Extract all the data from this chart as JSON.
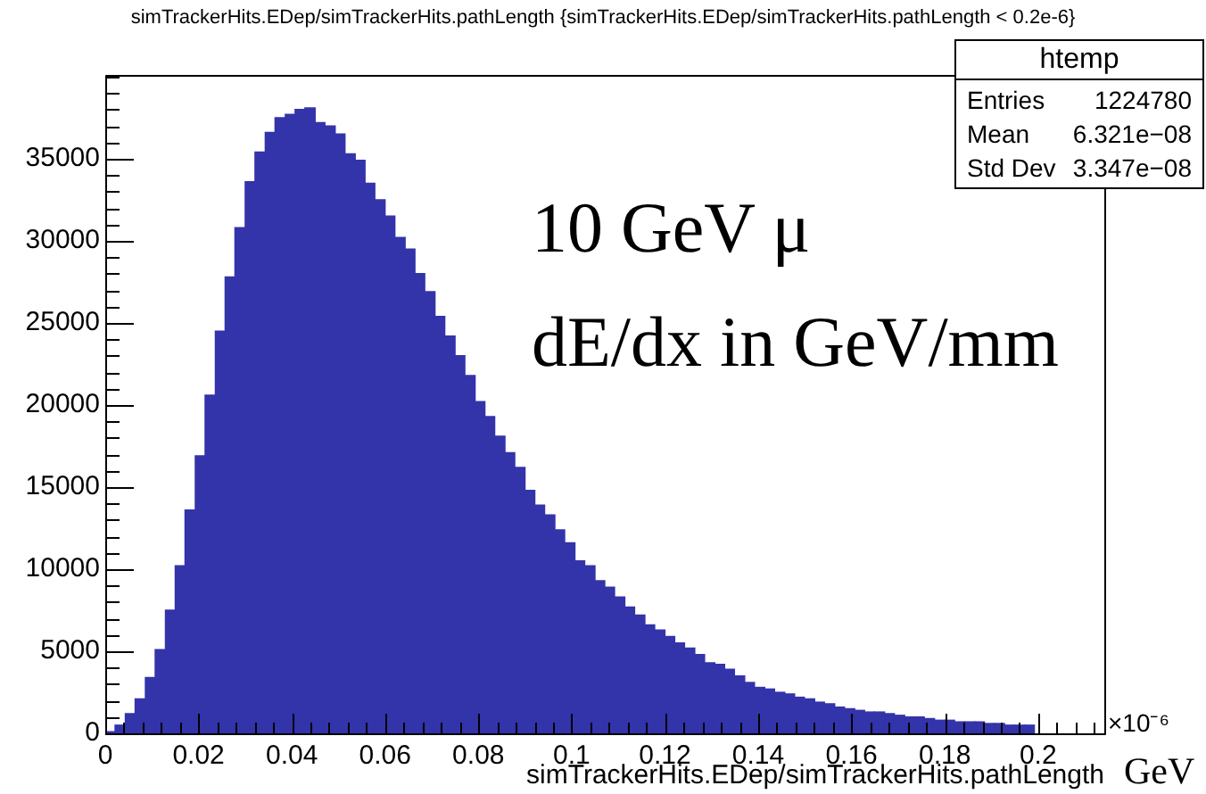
{
  "chart_data": {
    "type": "histogram",
    "title": "simTrackerHits.EDep/simTrackerHits.pathLength {simTrackerHits.EDep/simTrackerHits.pathLength < 0.2e-6}",
    "xlabel": "simTrackerHits.EDep/simTrackerHits.pathLength",
    "annotations": [
      "10 GeV μ",
      "dE/dx in GeV/mm",
      "GeV",
      "×10⁻⁶",
      "htemp",
      "Entries",
      "1224780",
      "Mean",
      "6.321e−08",
      "Std Dev",
      "3.347e−08"
    ],
    "color": "#3333aa",
    "bins": [
      0,
      0.0021,
      0.0043,
      0.0064,
      0.0086,
      0.0107,
      0.0129,
      0.015,
      0.0171,
      0.0193,
      0.0214,
      0.0236,
      0.0257,
      0.0278,
      0.03,
      0.0321,
      0.0343,
      0.0364,
      0.0386,
      0.0407,
      0.0428,
      0.045,
      0.0471,
      0.0493,
      0.0514,
      0.0536,
      0.0557,
      0.0578,
      0.06,
      0.0621,
      0.0643,
      0.0664,
      0.0685,
      0.0707,
      0.0728,
      0.075,
      0.0771,
      0.0793,
      0.0814,
      0.0835,
      0.0857,
      0.0878,
      0.09,
      0.0921,
      0.0942,
      0.0964,
      0.0985,
      0.1007,
      0.1028,
      0.105,
      0.1071,
      0.1092,
      0.1114,
      0.1135,
      0.1157,
      0.1178,
      0.12,
      0.1221,
      0.1242,
      0.1264,
      0.1285,
      0.1307,
      0.1328,
      0.1349,
      0.1371,
      0.1392,
      0.1414,
      0.1435,
      0.1457,
      0.1478,
      0.1499,
      0.1521,
      0.1542,
      0.1564,
      0.1585,
      0.1607,
      0.1628,
      0.1649,
      0.1671,
      0.1692,
      0.1714,
      0.1735,
      0.1756,
      0.1778,
      0.1799,
      0.1821,
      0.1842,
      0.1864,
      0.1885,
      0.1906,
      0.1928,
      0.1949,
      0.1971,
      0.1992
    ],
    "values": [
      100,
      500,
      1200,
      2100,
      3400,
      5100,
      7500,
      10200,
      13600,
      16900,
      20600,
      24500,
      27800,
      30800,
      33600,
      35400,
      36600,
      37500,
      37700,
      38000,
      38100,
      37200,
      37000,
      36500,
      35300,
      34900,
      33500,
      32500,
      31500,
      30200,
      29500,
      28000,
      26900,
      25400,
      24200,
      23000,
      21800,
      20200,
      19300,
      18100,
      17100,
      16200,
      14800,
      13900,
      13300,
      12400,
      11600,
      10500,
      10200,
      9300,
      8900,
      8300,
      7700,
      7200,
      6600,
      6300,
      5900,
      5500,
      5200,
      4800,
      4300,
      4200,
      3900,
      3500,
      3100,
      2800,
      2700,
      2500,
      2400,
      2200,
      2100,
      1900,
      1800,
      1600,
      1500,
      1400,
      1300,
      1300,
      1200,
      1100,
      1000,
      1000,
      900,
      800,
      800,
      700,
      700,
      700,
      600,
      600,
      500,
      500,
      500
    ],
    "xlim": [
      0,
      0.2142
    ],
    "xticks": [
      0,
      {
        "value": 0.004,
        "label": null
      },
      {
        "value": 0.008,
        "label": null
      },
      {
        "value": 0.012,
        "label": null
      },
      {
        "value": 0.016,
        "label": null
      },
      0.02,
      {
        "value": 0.024,
        "label": null
      },
      {
        "value": 0.028,
        "label": null
      },
      {
        "value": 0.032,
        "label": null
      },
      {
        "value": 0.036,
        "label": null
      },
      0.04,
      {
        "value": 0.044,
        "label": null
      },
      {
        "value": 0.048,
        "label": null
      },
      {
        "value": 0.052,
        "label": null
      },
      {
        "value": 0.056,
        "label": null
      },
      0.06,
      {
        "value": 0.064,
        "label": null
      },
      {
        "value": 0.068,
        "label": null
      },
      {
        "value": 0.072,
        "label": null
      },
      {
        "value": 0.076,
        "label": null
      },
      0.08,
      {
        "value": 0.084,
        "label": null
      },
      {
        "value": 0.088,
        "label": null
      },
      {
        "value": 0.092,
        "label": null
      },
      {
        "value": 0.096,
        "label": null
      },
      0.1,
      {
        "value": 0.104,
        "label": null
      },
      {
        "value": 0.108,
        "label": null
      },
      {
        "value": 0.112,
        "label": null
      },
      {
        "value": 0.116,
        "label": null
      },
      0.12,
      {
        "value": 0.124,
        "label": null
      },
      {
        "value": 0.128,
        "label": null
      },
      {
        "value": 0.132,
        "label": null
      },
      {
        "value": 0.136,
        "label": null
      },
      0.14,
      {
        "value": 0.144,
        "label": null
      },
      {
        "value": 0.148,
        "label": null
      },
      {
        "value": 0.152,
        "label": null
      },
      {
        "value": 0.156,
        "label": null
      },
      0.16,
      {
        "value": 0.164,
        "label": null
      },
      {
        "value": 0.168,
        "label": null
      },
      {
        "value": 0.172,
        "label": null
      },
      {
        "value": 0.176,
        "label": null
      },
      0.18,
      {
        "value": 0.184,
        "label": null
      },
      {
        "value": 0.188,
        "label": null
      },
      {
        "value": 0.192,
        "label": null
      },
      {
        "value": 0.196,
        "label": null
      },
      0.2,
      {
        "value": 0.204,
        "label": null
      },
      {
        "value": 0.208,
        "label": null
      },
      {
        "value": 0.212,
        "label": null
      }
    ],
    "ylim": [
      0,
      40100
    ],
    "yticks": [
      0,
      {
        "value": 1000,
        "label": null
      },
      {
        "value": 2000,
        "label": null
      },
      {
        "value": 3000,
        "label": null
      },
      {
        "value": 4000,
        "label": null
      },
      5000,
      {
        "value": 6000,
        "label": null
      },
      {
        "value": 7000,
        "label": null
      },
      {
        "value": 8000,
        "label": null
      },
      {
        "value": 9000,
        "label": null
      },
      10000,
      {
        "value": 11000,
        "label": null
      },
      {
        "value": 12000,
        "label": null
      },
      {
        "value": 13000,
        "label": null
      },
      {
        "value": 14000,
        "label": null
      },
      15000,
      {
        "value": 16000,
        "label": null
      },
      {
        "value": 17000,
        "label": null
      },
      {
        "value": 18000,
        "label": null
      },
      {
        "value": 19000,
        "label": null
      },
      20000,
      {
        "value": 21000,
        "label": null
      },
      {
        "value": 22000,
        "label": null
      },
      {
        "value": 23000,
        "label": null
      },
      {
        "value": 24000,
        "label": null
      },
      25000,
      {
        "value": 26000,
        "label": null
      },
      {
        "value": 27000,
        "label": null
      },
      {
        "value": 28000,
        "label": null
      },
      {
        "value": 29000,
        "label": null
      },
      30000,
      {
        "value": 31000,
        "label": null
      },
      {
        "value": 32000,
        "label": null
      },
      {
        "value": 33000,
        "label": null
      },
      {
        "value": 34000,
        "label": null
      },
      35000,
      {
        "value": 36000,
        "label": null
      },
      {
        "value": 37000,
        "label": null
      },
      {
        "value": 38000,
        "label": null
      },
      {
        "value": 39000,
        "label": null
      },
      {
        "value": 40000,
        "label": null
      }
    ],
    "grid": false,
    "legend": false
  }
}
